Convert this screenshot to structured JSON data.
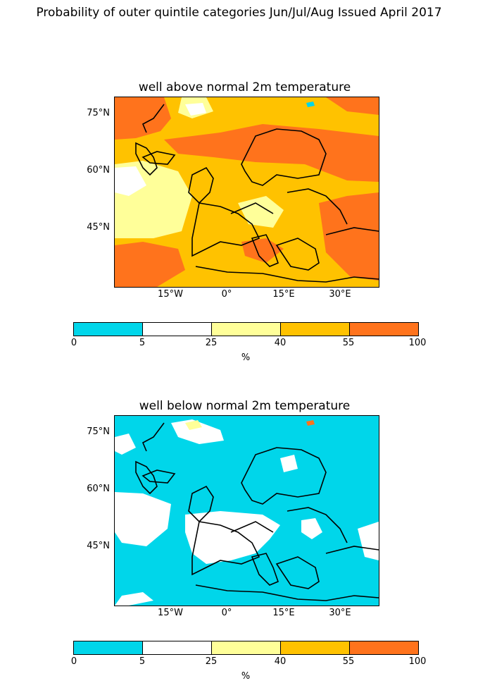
{
  "figure": {
    "title": "Probability of outer quintile categories Jun/Jul/Aug Issued April 2017"
  },
  "legend": {
    "bounds": [
      "0",
      "5",
      "25",
      "40",
      "55",
      "100"
    ],
    "colors": [
      "#00d6ea",
      "#ffffff",
      "#ffff99",
      "#ffc200",
      "#ff731c"
    ],
    "unit": "%"
  },
  "axes": {
    "lat_labels": [
      "75°N",
      "60°N",
      "45°N"
    ],
    "lon_labels": [
      "15°W",
      "0°",
      "15°E",
      "30°E"
    ]
  },
  "panels": [
    {
      "title": "well above normal 2m temperature"
    },
    {
      "title": "well below normal 2m temperature"
    }
  ]
}
